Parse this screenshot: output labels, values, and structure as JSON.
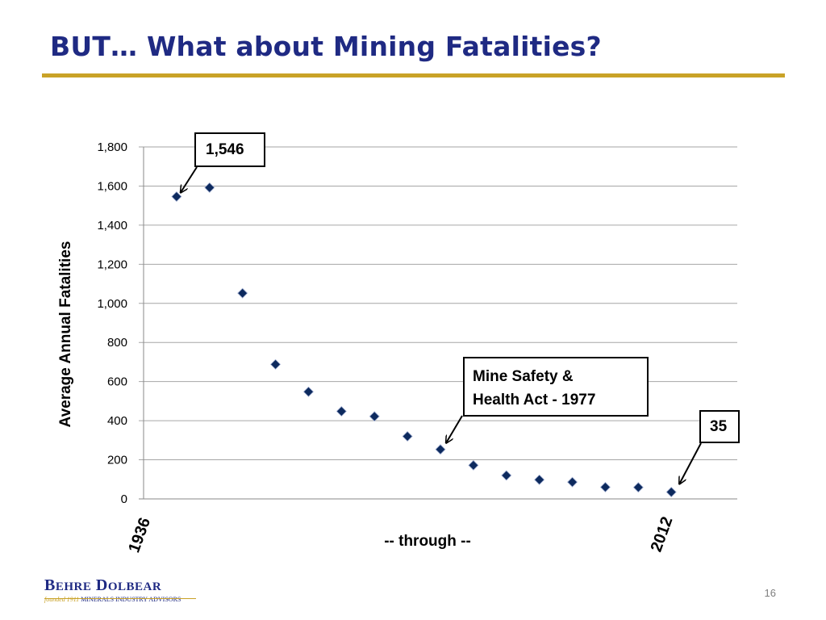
{
  "slide": {
    "title": "BUT… What about Mining Fatalities?",
    "page_number": "16"
  },
  "logo": {
    "name": "Behre Dolbear",
    "founded": "founded 1911",
    "tagline": "MINERALS INDUSTRY ADVISORS"
  },
  "colors": {
    "title": "#1f2a83",
    "rule": "#c9a227",
    "marker": "#0d2a5e"
  },
  "annotations": {
    "first_value": "1,546",
    "act_line1": "Mine Safety &",
    "act_line2": "Health Act - 1977",
    "last_value": "35"
  },
  "chart_data": {
    "type": "scatter",
    "title": "",
    "ylabel": "Average Annual Fatalities",
    "xlabel": "-- through --",
    "x_start_label": "1936",
    "x_end_label": "2012",
    "ylim": [
      0,
      1800
    ],
    "yticks": [
      0,
      200,
      400,
      600,
      800,
      1000,
      1200,
      1400,
      1600,
      1800
    ],
    "ytick_labels": [
      "0",
      "200",
      "400",
      "600",
      "800",
      "1,000",
      "1,200",
      "1,400",
      "1,600",
      "1,800"
    ],
    "grid": true,
    "series": [
      {
        "marker": "diamond",
        "values": [
          1546,
          1592,
          1052,
          688,
          548,
          448,
          422,
          320,
          253,
          172,
          120,
          98,
          86,
          60,
          59,
          35
        ]
      }
    ]
  }
}
